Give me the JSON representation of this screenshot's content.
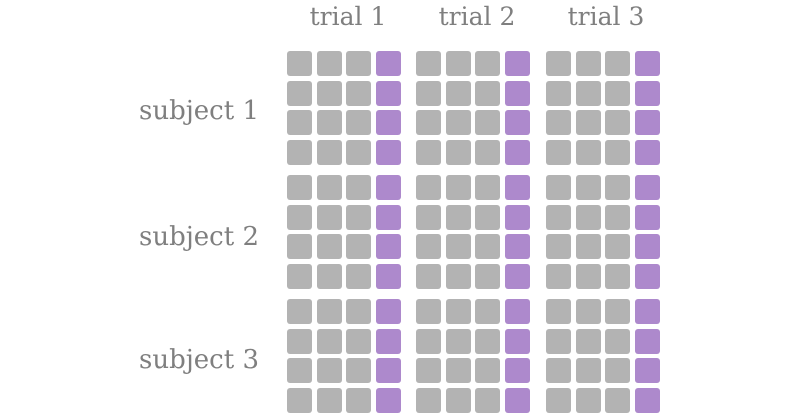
{
  "columns": [
    "trial 1",
    "trial 2",
    "trial 3"
  ],
  "rows": [
    "subject 1",
    "subject 2",
    "subject 3"
  ],
  "grid": {
    "rows_per_block": 4,
    "cols_per_block": 4,
    "highlight_col": 4
  },
  "colors": {
    "cell": "#b3b3b3",
    "highlight": "#ad89cc",
    "text": "#7f7f7f"
  }
}
